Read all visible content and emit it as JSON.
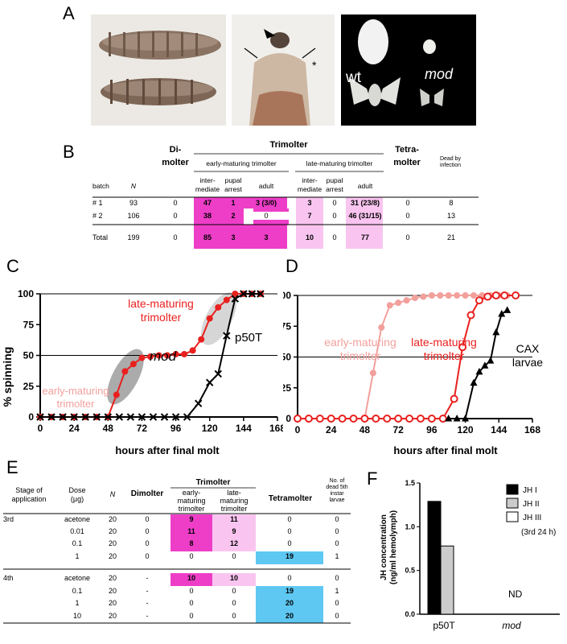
{
  "panels": {
    "A": "A",
    "B": "B",
    "C": "C",
    "D": "D",
    "E": "E",
    "F": "F"
  },
  "panelA": {
    "wt_label": "wt",
    "mod_label": "mod",
    "asterisk": "*"
  },
  "tableB": {
    "head_trimolter": "Trimolter",
    "head_dimolter": "Di-\nmolter",
    "head_tetramolter": "Tetra-\nmolter",
    "head_dead": "Dead by\ninfection",
    "sub_early": "early-maturing trimolter",
    "sub_late": "late-maturing trimolter",
    "col_batch": "batch",
    "col_n": "N",
    "col_intermediate": "inter-\nmediate",
    "col_pupal": "pupal\narrest",
    "col_adult": "adult",
    "rows": [
      {
        "batch": "# 1",
        "n": "93",
        "di": "0",
        "e_int": "47",
        "e_pup": "1",
        "e_adu": "3 (3/0)",
        "l_int": "3",
        "l_pup": "0",
        "l_adu": "31 (23/8)",
        "tetra": "0",
        "dead": "8"
      },
      {
        "batch": "# 2",
        "n": "106",
        "di": "0",
        "e_int": "38",
        "e_pup": "2",
        "e_adu": "0",
        "l_int": "7",
        "l_pup": "0",
        "l_adu": "46 (31/15)",
        "tetra": "0",
        "dead": "13"
      }
    ],
    "total": {
      "batch": "Total",
      "n": "199",
      "di": "0",
      "e_int": "85",
      "e_pup": "3",
      "e_adu": "3",
      "l_int": "10",
      "l_pup": "0",
      "l_adu": "77",
      "tetra": "0",
      "dead": "21"
    }
  },
  "chart_data": [
    {
      "type": "line",
      "panel": "C",
      "ylabel": "% spinning",
      "xlabel": "hours after final molt",
      "xlim": [
        0,
        168
      ],
      "ylim": [
        0,
        100
      ],
      "xticks": [
        0,
        24,
        48,
        72,
        96,
        120,
        144,
        168
      ],
      "yticks": [
        0,
        25,
        50,
        75,
        100
      ],
      "annotations": [
        "late-maturing\ntrimolter",
        "mod",
        "p50T",
        "early-maturing\ntrimolter"
      ],
      "series": [
        {
          "name": "mod",
          "color": "#e8211f",
          "marker": "filled-circle",
          "x": [
            0,
            8,
            16,
            24,
            32,
            40,
            48,
            54,
            60,
            66,
            72,
            78,
            84,
            90,
            96,
            102,
            108,
            114,
            120,
            126,
            132,
            138,
            144,
            150,
            156
          ],
          "y": [
            0,
            0,
            0,
            0,
            0,
            0,
            0,
            18,
            37,
            43,
            48,
            49,
            50,
            50,
            51,
            51,
            54,
            63,
            80,
            89,
            95,
            100,
            100,
            100,
            100
          ]
        },
        {
          "name": "p50T",
          "color": "#000000",
          "marker": "x",
          "x": [
            0,
            8,
            16,
            24,
            32,
            40,
            48,
            56,
            64,
            72,
            80,
            88,
            96,
            104,
            112,
            120,
            126,
            132,
            138,
            144,
            150,
            156
          ],
          "y": [
            0,
            0,
            0,
            0,
            0,
            0,
            0,
            0,
            0,
            0,
            0,
            0,
            0,
            0,
            11,
            28,
            35,
            66,
            96,
            100,
            100,
            100
          ]
        }
      ]
    },
    {
      "type": "line",
      "panel": "D",
      "xlabel": "hours after final molt",
      "xlim": [
        0,
        168
      ],
      "ylim": [
        0,
        100
      ],
      "xticks": [
        0,
        24,
        48,
        72,
        96,
        120,
        144,
        168
      ],
      "yticks": [
        0,
        25,
        50,
        75,
        100
      ],
      "annotations": [
        "early-maturing\ntrimolter",
        "late-maturing\ntrimolter",
        "CAX\nlarvae"
      ],
      "series": [
        {
          "name": "early-maturing trimolter",
          "color": "#f2a09c",
          "marker": "filled-circle",
          "x": [
            0,
            8,
            16,
            24,
            32,
            40,
            48,
            54,
            60,
            66,
            72,
            78,
            84,
            90,
            96,
            102,
            108,
            114,
            120,
            126,
            132,
            138,
            144,
            150,
            156
          ],
          "y": [
            0,
            0,
            0,
            0,
            0,
            0,
            0,
            37,
            74,
            92,
            94,
            96,
            98,
            99,
            100,
            100,
            100,
            100,
            100,
            100,
            100,
            100,
            100,
            100,
            100
          ]
        },
        {
          "name": "late-maturing trimolter",
          "color": "#e8211f",
          "marker": "open-circle",
          "x": [
            0,
            8,
            16,
            24,
            32,
            40,
            48,
            56,
            64,
            72,
            80,
            88,
            96,
            104,
            112,
            118,
            124,
            130,
            136,
            142,
            148,
            156
          ],
          "y": [
            0,
            0,
            0,
            0,
            0,
            0,
            0,
            0,
            0,
            0,
            0,
            0,
            0,
            0,
            16,
            58,
            84,
            96,
            99,
            100,
            100,
            100
          ]
        },
        {
          "name": "CAX larvae",
          "color": "#000000",
          "marker": "triangle",
          "x": [
            108,
            114,
            120,
            126,
            130,
            134,
            138,
            142,
            146,
            150
          ],
          "y": [
            0,
            0,
            0,
            29,
            38,
            43,
            47,
            70,
            85,
            88
          ]
        }
      ]
    },
    {
      "type": "bar",
      "panel": "F",
      "ylabel": "JH concentration\n(ng/ml hemolymph)",
      "categories": [
        "p50T",
        "mod"
      ],
      "ylim": [
        0,
        1.5
      ],
      "yticks": [
        "0.0",
        "0.5",
        "1.0",
        "1.5"
      ],
      "legend": [
        "JH I",
        "JH II",
        "JH III"
      ],
      "legend_note": "(3rd 24 h)",
      "series": [
        {
          "name": "JH I",
          "color": "#000000",
          "values": [
            1.29,
            null
          ]
        },
        {
          "name": "JH II",
          "color": "#cccccc",
          "values": [
            0.78,
            null
          ]
        },
        {
          "name": "JH III",
          "color": "#ffffff",
          "values": [
            null,
            null
          ]
        }
      ],
      "nd_label": "ND"
    }
  ],
  "tableE": {
    "col_stage": "Stage of\napplication",
    "col_dose": "Dose\n(μg)",
    "col_n": "N",
    "col_di": "Dimolter",
    "head_tri": "Trimolter",
    "col_early": "early-\nmaturing\ntrimolter",
    "col_late": "late-\nmaturing\ntrimolter",
    "col_tetra": "Tetramolter",
    "col_dead": "No. of\ndead 5th\ninstar\nlarvae",
    "rows": [
      {
        "stage": "3rd",
        "dose": "acetone",
        "n": "20",
        "di": "0",
        "early": "9",
        "late": "11",
        "tetra": "0",
        "dead": "0"
      },
      {
        "stage": "",
        "dose": "0.01",
        "n": "20",
        "di": "0",
        "early": "11",
        "late": "9",
        "tetra": "0",
        "dead": "0"
      },
      {
        "stage": "",
        "dose": "0.1",
        "n": "20",
        "di": "0",
        "early": "8",
        "late": "12",
        "tetra": "0",
        "dead": "0"
      },
      {
        "stage": "",
        "dose": "1",
        "n": "20",
        "di": "0",
        "early": "0",
        "late": "0",
        "tetra": "19",
        "dead": "1"
      },
      {
        "stage": "4th",
        "dose": "acetone",
        "n": "20",
        "di": "-",
        "early": "10",
        "late": "10",
        "tetra": "0",
        "dead": "0"
      },
      {
        "stage": "",
        "dose": "0.1",
        "n": "20",
        "di": "-",
        "early": "0",
        "late": "0",
        "tetra": "19",
        "dead": "1"
      },
      {
        "stage": "",
        "dose": "1",
        "n": "20",
        "di": "-",
        "early": "0",
        "late": "0",
        "tetra": "20",
        "dead": "0"
      },
      {
        "stage": "",
        "dose": "10",
        "n": "20",
        "di": "-",
        "early": "0",
        "late": "0",
        "tetra": "20",
        "dead": "0"
      }
    ]
  },
  "colors": {
    "magenta": "#ee3ec8",
    "pink": "#f9c5f0",
    "blue": "#5ec8f2",
    "red": "#e8211f",
    "lightred": "#f2a09c"
  }
}
